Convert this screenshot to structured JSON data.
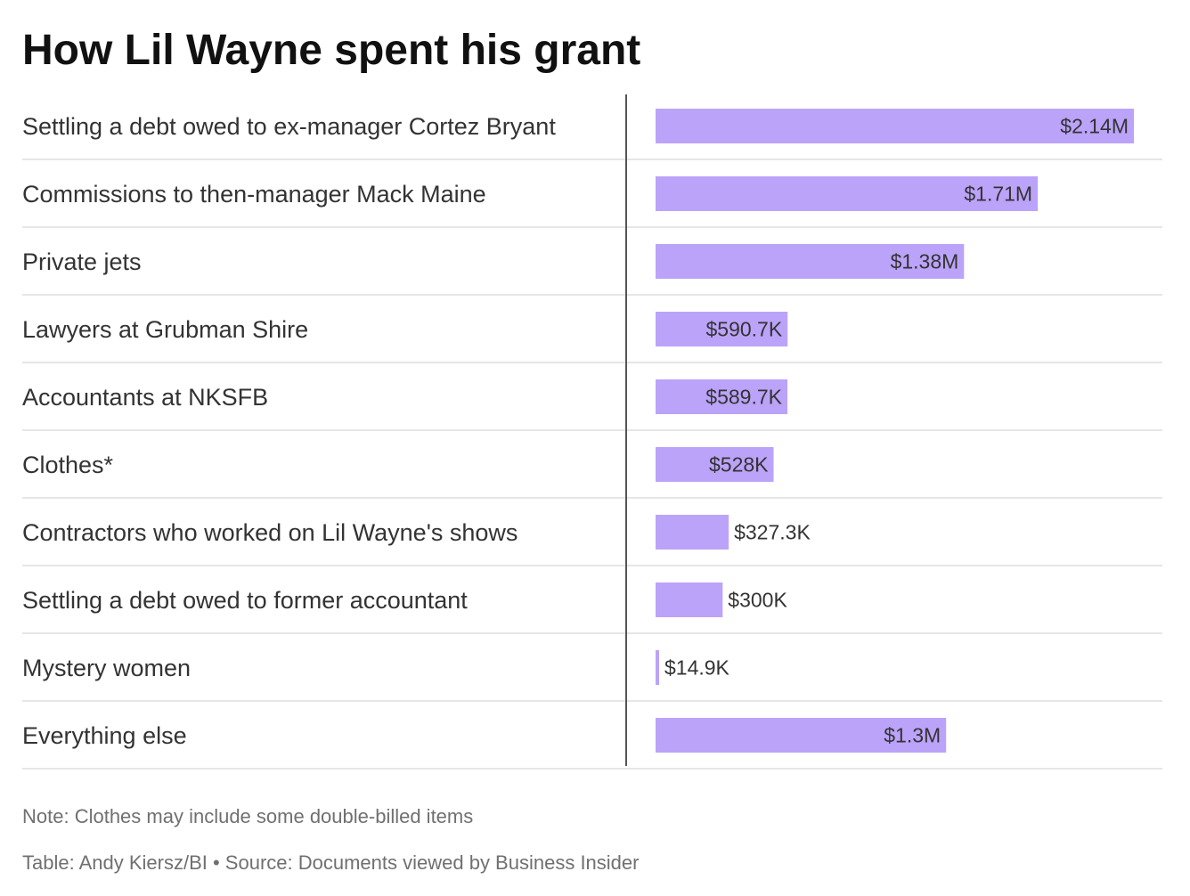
{
  "title": "How Lil Wayne spent his grant",
  "note": "Note: Clothes may include some double-billed items",
  "credit": "Table: Andy Kiersz/BI • Source: Documents viewed by Business Insider",
  "colors": {
    "bar": "#bba3f9",
    "label_text": "#333333",
    "divider": "#555555",
    "row_rule": "#e6e6e6"
  },
  "chart_data": {
    "type": "bar",
    "orientation": "horizontal",
    "title": "How Lil Wayne spent his grant",
    "categories": [
      "Settling a debt owed to ex-manager Cortez Bryant",
      "Commissions to then-manager Mack Maine",
      "Private jets",
      "Lawyers at Grubman Shire",
      "Accountants at NKSFB",
      "Clothes*",
      "Contractors who worked on Lil Wayne's shows",
      "Settling a debt owed to former accountant",
      "Mystery women",
      "Everything else"
    ],
    "values": [
      2140000,
      1710000,
      1380000,
      590700,
      589700,
      528000,
      327300,
      300000,
      14900,
      1300000
    ],
    "value_labels": [
      "$2.14M",
      "$1.71M",
      "$1.38M",
      "$590.7K",
      "$589.7K",
      "$528K",
      "$327.3K",
      "$300K",
      "$14.9K",
      "$1.3M"
    ],
    "xlim": [
      0,
      2140000
    ],
    "grid": false
  }
}
